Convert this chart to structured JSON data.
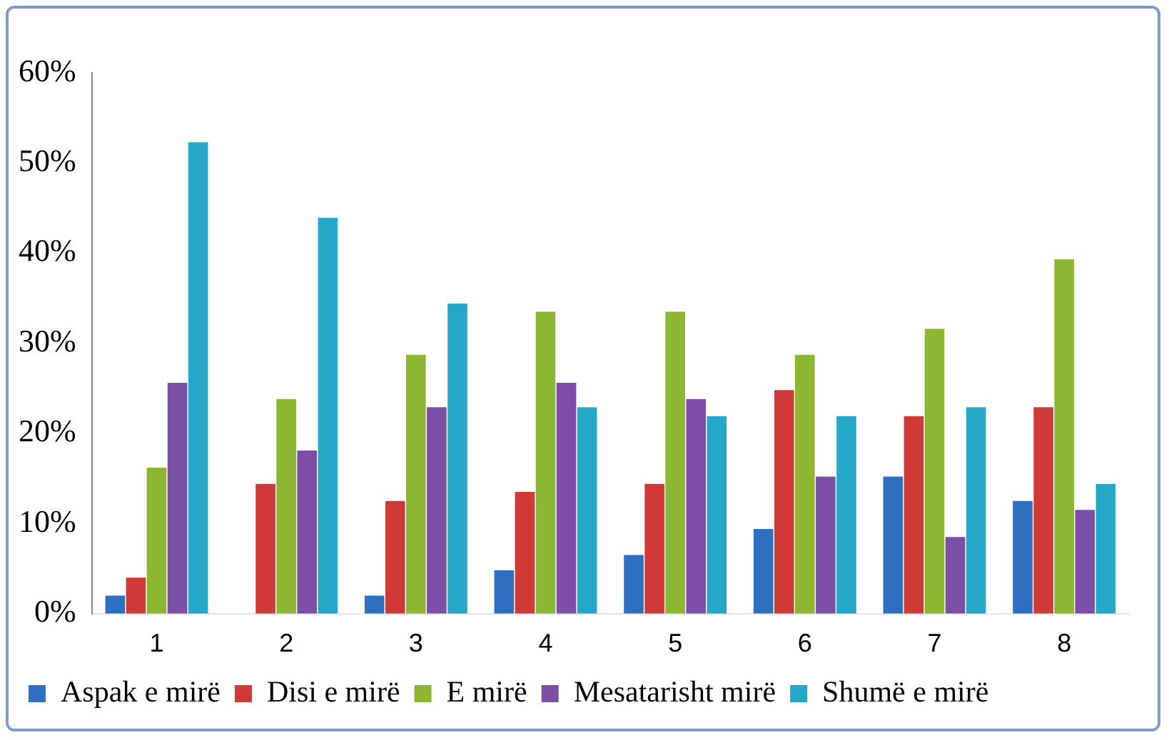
{
  "chart_data": {
    "type": "bar",
    "categories": [
      "1",
      "2",
      "3",
      "4",
      "5",
      "6",
      "7",
      "8"
    ],
    "series": [
      {
        "name": "Aspak e mirë",
        "color": "#2e6fc0",
        "values": [
          2,
          0,
          2,
          4.8,
          6.5,
          9.4,
          15.2,
          12.5
        ]
      },
      {
        "name": "Disi e mirë",
        "color": "#d03a36",
        "values": [
          4,
          14.4,
          12.5,
          13.5,
          14.4,
          24.8,
          21.9,
          22.9
        ]
      },
      {
        "name": "E mirë",
        "color": "#8db632",
        "values": [
          16.2,
          23.8,
          28.7,
          33.5,
          33.5,
          28.7,
          31.6,
          39.3
        ]
      },
      {
        "name": "Mesatarisht mirë",
        "color": "#7b4fa6",
        "values": [
          25.6,
          18.1,
          22.9,
          25.6,
          23.8,
          15.2,
          8.5,
          11.5
        ]
      },
      {
        "name": "Shumë e mirë",
        "color": "#25a8c8",
        "values": [
          52.3,
          43.9,
          34.4,
          22.9,
          21.9,
          21.9,
          22.9,
          14.4
        ]
      }
    ],
    "ylim": [
      0,
      60
    ],
    "yticks": [
      {
        "value": 0,
        "label": "0%"
      },
      {
        "value": 10,
        "label": "10%"
      },
      {
        "value": 20,
        "label": "20%"
      },
      {
        "value": 30,
        "label": "30%"
      },
      {
        "value": 40,
        "label": "40%"
      },
      {
        "value": 50,
        "label": "50%"
      },
      {
        "value": 60,
        "label": "60%"
      }
    ],
    "grid": false,
    "legend": "bottom"
  }
}
